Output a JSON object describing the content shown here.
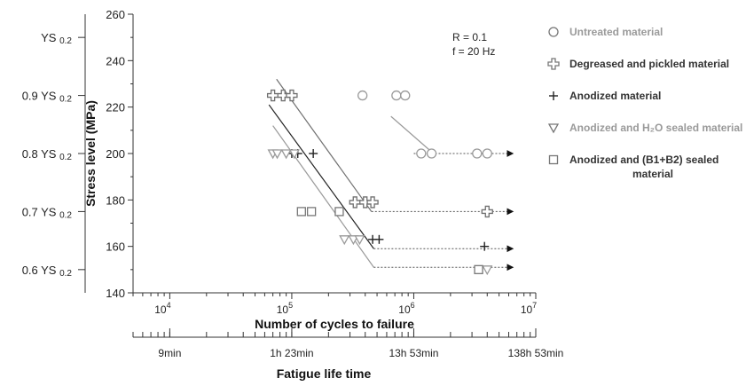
{
  "chart_data": {
    "type": "scatter",
    "x_scale": "log",
    "xlim": [
      5000,
      10000000
    ],
    "ylim": [
      140,
      260
    ],
    "xlabel": "Number of cycles to failure",
    "ylabel": "Stress level (MPa)",
    "secondary_xlabel": "Fatigue life time",
    "x_tick_labels": [
      "10",
      "10",
      "10",
      "10"
    ],
    "x_tick_exponents": [
      "4",
      "5",
      "6",
      "7"
    ],
    "x_tick_values": [
      10000,
      100000,
      1000000,
      10000000
    ],
    "y_ticks": [
      140,
      160,
      180,
      200,
      220,
      240,
      260
    ],
    "time_tick_labels": [
      "9min",
      "1h 23min",
      "13h 53min",
      "138h 53min"
    ],
    "time_tick_values": [
      10000,
      100000,
      1000000,
      10000000
    ],
    "ys_scale_ticks": [
      {
        "label": "YS",
        "sub": "0.2",
        "stress": 250
      },
      {
        "label": "0.9 YS",
        "sub": "0.2",
        "stress": 225
      },
      {
        "label": "0.8 YS",
        "sub": "0.2",
        "stress": 200
      },
      {
        "label": "0.7 YS",
        "sub": "0.2",
        "stress": 175
      },
      {
        "label": "0.6 YS",
        "sub": "0.2",
        "stress": 150
      }
    ],
    "annotation_lines": [
      "R = 0.1",
      "f = 20 Hz"
    ],
    "legend_position": "right",
    "grid": false,
    "series": [
      {
        "name": "Untreated material",
        "marker": "circle",
        "color": "#9a9a9a",
        "points": [
          [
            380000,
            225
          ],
          [
            720000,
            225
          ],
          [
            850000,
            225
          ],
          [
            1150000,
            200
          ],
          [
            1400000,
            200
          ],
          [
            3300000,
            200
          ],
          [
            4000000,
            200
          ]
        ],
        "runout": {
          "x": 4000000,
          "y": 200
        },
        "fit": [
          [
            650000,
            216
          ],
          [
            1450000,
            200
          ]
        ],
        "runout_line": [
          [
            1000000,
            200
          ],
          [
            6500000,
            200
          ]
        ]
      },
      {
        "name": "Degreased and pickled material",
        "marker": "cross-circle",
        "color": "#707070",
        "points": [
          [
            70000,
            225
          ],
          [
            85000,
            225
          ],
          [
            100000,
            225
          ],
          [
            330000,
            179
          ],
          [
            400000,
            179
          ],
          [
            460000,
            179
          ],
          [
            4000000,
            175
          ]
        ],
        "runout": {
          "x": 4000000,
          "y": 175
        },
        "fit": [
          [
            75000,
            232
          ],
          [
            450000,
            175
          ]
        ],
        "runout_line": [
          [
            450000,
            175
          ],
          [
            6500000,
            175
          ]
        ]
      },
      {
        "name": "Anodized material",
        "marker": "plus",
        "color": "#222222",
        "points": [
          [
            100000,
            200
          ],
          [
            112000,
            200
          ],
          [
            150000,
            200
          ],
          [
            460000,
            163
          ],
          [
            520000,
            163
          ],
          [
            3800000,
            160
          ]
        ],
        "runout": {
          "x": 3800000,
          "y": 160
        },
        "fit": [
          [
            65000,
            221
          ],
          [
            470000,
            159
          ]
        ],
        "runout_line": [
          [
            470000,
            159
          ],
          [
            6500000,
            159
          ]
        ]
      },
      {
        "name": "Anodized and H₂O sealed material",
        "marker": "triangle-down",
        "color": "#9a9a9a",
        "points": [
          [
            70000,
            200
          ],
          [
            76000,
            200
          ],
          [
            90000,
            200
          ],
          [
            105000,
            200
          ],
          [
            270000,
            163
          ],
          [
            320000,
            163
          ],
          [
            360000,
            163
          ],
          [
            4000000,
            150
          ]
        ],
        "runout": {
          "x": 4000000,
          "y": 150
        },
        "fit": [
          [
            70000,
            212
          ],
          [
            470000,
            151
          ]
        ],
        "runout_line": [
          [
            470000,
            151
          ],
          [
            6500000,
            151
          ]
        ]
      },
      {
        "name": "Anodized and (B1+B2) sealed material",
        "marker": "square",
        "color": "#777777",
        "points": [
          [
            120000,
            175
          ],
          [
            145000,
            175
          ],
          [
            245000,
            175
          ],
          [
            3400000,
            150
          ]
        ],
        "runout": {
          "x": 3400000,
          "y": 150
        },
        "fit": [],
        "runout_line": []
      }
    ]
  }
}
